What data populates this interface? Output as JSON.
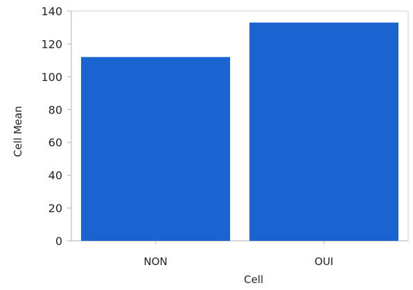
{
  "chart_data": {
    "type": "bar",
    "categories": [
      "NON",
      "OUI"
    ],
    "values": [
      112,
      133
    ],
    "xlabel": "Cell",
    "ylabel": "Cell Mean",
    "ylim": [
      0,
      140
    ],
    "yticks": [
      0,
      20,
      40,
      60,
      80,
      100,
      120,
      140
    ],
    "grid": false,
    "legend": "none",
    "bar_color": "#1a63d1",
    "axis_color": "#c8c8c8",
    "frame_color": "#cfcfcf"
  }
}
